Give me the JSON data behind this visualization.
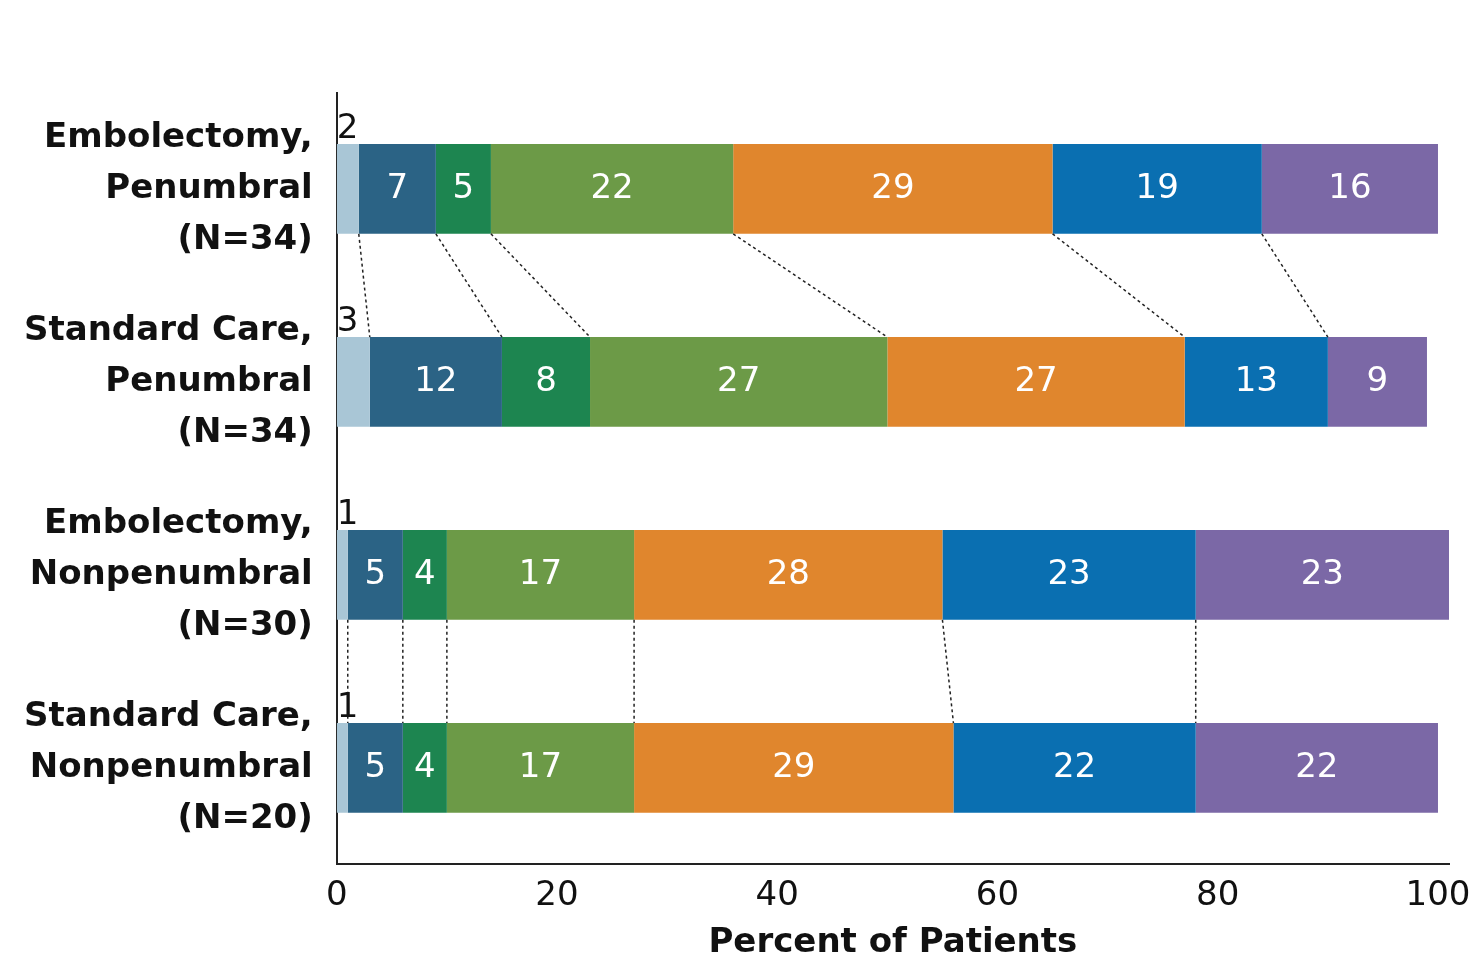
{
  "chart_data": {
    "type": "bar",
    "orientation": "horizontal",
    "stacked": true,
    "data_labels": true,
    "legend": false,
    "grid": false,
    "xlabel": "Percent of Patients",
    "categories": [
      "Embolectomy,\nPenumbral\n(N=34)",
      "Standard Care,\nPenumbral\n(N=34)",
      "Embolectomy,\nNonpenumbral\n(N=30)",
      "Standard Care,\nNonpenumbral\n(N=20)"
    ],
    "xlim": [
      0,
      101
    ],
    "xticks": [
      0,
      20,
      40,
      60,
      80,
      100
    ],
    "series": [
      {
        "color": "#a9c6d6",
        "values": [
          2,
          3,
          1,
          1
        ]
      },
      {
        "color": "#2b6385",
        "values": [
          7,
          12,
          5,
          5
        ]
      },
      {
        "color": "#1d8550",
        "values": [
          5,
          8,
          4,
          4
        ]
      },
      {
        "color": "#6c9a47",
        "values": [
          22,
          27,
          17,
          17
        ]
      },
      {
        "color": "#e0862d",
        "values": [
          29,
          27,
          28,
          29
        ]
      },
      {
        "color": "#0a6fb1",
        "values": [
          19,
          13,
          23,
          22
        ]
      },
      {
        "color": "#7b68a6",
        "values": [
          16,
          9,
          23,
          22
        ]
      }
    ]
  }
}
